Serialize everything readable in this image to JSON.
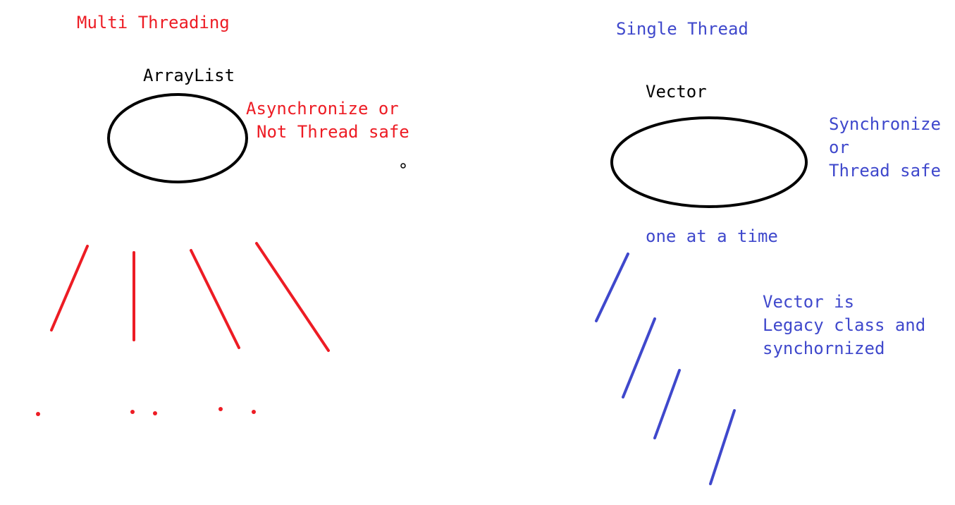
{
  "left": {
    "heading": "Multi Threading",
    "collection_label": "ArrayList",
    "note_line1": "Asynchronize or",
    "note_line2": "Not Thread safe"
  },
  "right": {
    "heading": "Single Thread",
    "collection_label": "Vector",
    "note_line1": "Synchronize",
    "note_line2": "or",
    "note_line3": "Thread safe",
    "access_note": "one at a time",
    "legacy_line1": "Vector is",
    "legacy_line2": "Legacy class and",
    "legacy_line3": "synchornized"
  },
  "colors": {
    "multi": "#ed1c24",
    "single": "#3f48cc",
    "ink": "#000000"
  }
}
